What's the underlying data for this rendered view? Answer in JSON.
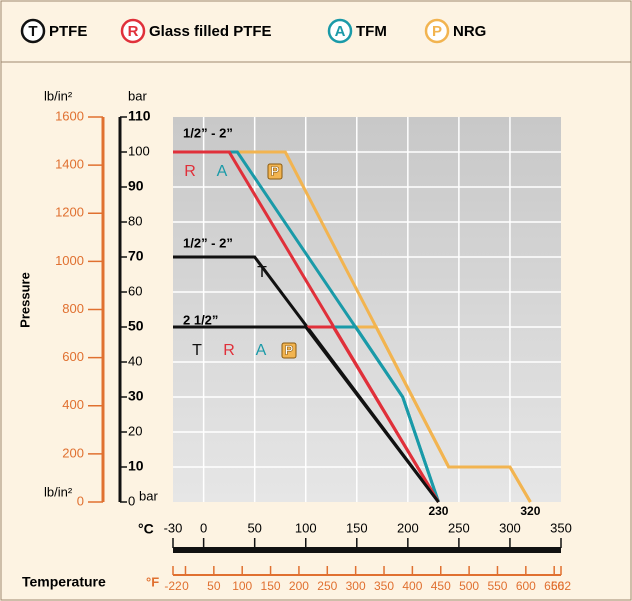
{
  "chart_data": {
    "type": "line",
    "y_label": "Pressure",
    "x_label": "Temperature",
    "x_unit": "°C",
    "x2_unit": "°F",
    "y_unit": "bar",
    "y2_unit": "lb/in²",
    "xlim": [
      -30,
      350
    ],
    "xticks": [
      -30,
      0,
      50,
      100,
      150,
      200,
      250,
      300,
      350
    ],
    "x2lim": [
      -22,
      662
    ],
    "x2ticks": [
      -22,
      0,
      50,
      100,
      150,
      200,
      250,
      300,
      350,
      400,
      450,
      500,
      550,
      600,
      650,
      662
    ],
    "ylim": [
      0,
      110
    ],
    "yticks": [
      0,
      10,
      20,
      30,
      40,
      50,
      60,
      70,
      80,
      90,
      100,
      110
    ],
    "y2lim": [
      0,
      1600
    ],
    "y2ticks": [
      0,
      200,
      400,
      600,
      800,
      1000,
      1200,
      1400,
      1600
    ],
    "grid": true,
    "end_labels": [
      230,
      320
    ],
    "groups": [
      {
        "label": "1/2” - 2”",
        "series": [
          {
            "code": "T",
            "name": "PTFE",
            "color": "#111111",
            "x": [
              -30,
              50,
              230
            ],
            "values": [
              70,
              70,
              0
            ]
          },
          {
            "code": "R",
            "name": "Glass filled PTFE",
            "color": "#e0303a",
            "x": [
              -30,
              25,
              230
            ],
            "values": [
              100,
              100,
              0
            ]
          },
          {
            "code": "A",
            "name": "TFM",
            "color": "#1a9aa8",
            "x": [
              -30,
              33,
              195,
              230
            ],
            "values": [
              100,
              100,
              30,
              0
            ]
          },
          {
            "code": "P",
            "name": "NRG",
            "color": "#f2b450",
            "x": [
              -30,
              80,
              240,
              300,
              320
            ],
            "values": [
              100,
              100,
              10,
              10,
              0
            ]
          }
        ]
      },
      {
        "label": "2 1/2”",
        "series": [
          {
            "code": "T",
            "name": "PTFE",
            "color": "#111111",
            "x": [
              -30,
              100,
              230
            ],
            "values": [
              50,
              50,
              0
            ]
          },
          {
            "code": "R",
            "name": "Glass filled PTFE",
            "color": "#e0303a",
            "x": [
              -30,
              127,
              230
            ],
            "values": [
              50,
              50,
              0
            ]
          },
          {
            "code": "A",
            "name": "TFM",
            "color": "#1a9aa8",
            "x": [
              -30,
              149,
              195,
              230
            ],
            "values": [
              50,
              50,
              30,
              0
            ]
          },
          {
            "code": "P",
            "name": "NRG",
            "color": "#f2b450",
            "x": [
              -30,
              169,
              240,
              300,
              320
            ],
            "values": [
              50,
              50,
              10,
              10,
              0
            ]
          }
        ]
      }
    ]
  }
}
